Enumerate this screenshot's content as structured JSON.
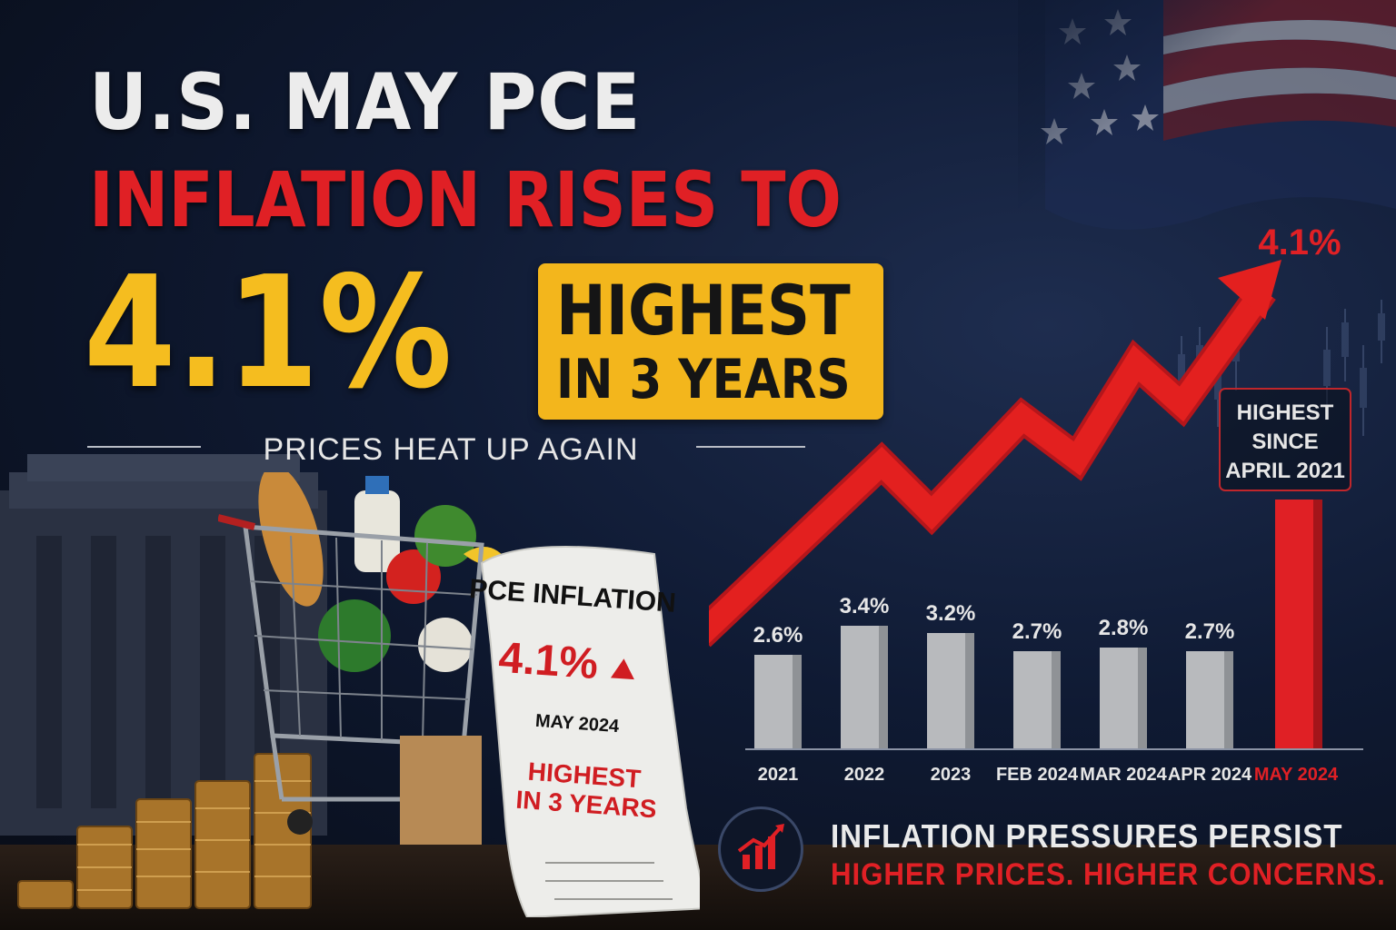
{
  "headline": {
    "line1": "U.S. MAY PCE",
    "line2": "INFLATION RISES TO",
    "value": "4.1%",
    "badge_line1": "HIGHEST",
    "badge_line2": "IN 3 YEARS",
    "subtitle": "PRICES HEAT UP AGAIN"
  },
  "receipt": {
    "title": "PCE INFLATION",
    "value": "4.1%",
    "date": "MAY 2024",
    "note_line1": "HIGHEST",
    "note_line2": "IN 3 YEARS"
  },
  "callout": {
    "line1": "INFLATION PRESSURES PERSIST",
    "line2": "HIGHER PRICES. HIGHER CONCERNS."
  },
  "colors": {
    "accent_red": "#e02025",
    "accent_yellow": "#f3b61c",
    "bar_gray": "#b8babd",
    "background": "#0f1a33"
  },
  "icons": [
    "rising-chart-icon",
    "up-triangle-icon",
    "trend-arrow-icon"
  ],
  "chart_data": {
    "type": "bar",
    "categories": [
      "2021",
      "2022",
      "2023",
      "FEB 2024",
      "MAR 2024",
      "APR 2024",
      "MAY 2024"
    ],
    "values": [
      2.6,
      3.4,
      3.2,
      2.7,
      2.8,
      2.7,
      4.1
    ],
    "value_labels": [
      "2.6%",
      "3.4%",
      "3.2%",
      "2.7%",
      "2.8%",
      "2.7%",
      "4.1%"
    ],
    "highlight_index": 6,
    "highlight_color": "#e02025",
    "annotation": [
      "HIGHEST",
      "SINCE",
      "APRIL 2021"
    ],
    "trend_arrow": true,
    "ylim": [
      0,
      4.6
    ],
    "grid": false,
    "title": "",
    "xlabel": "",
    "ylabel": ""
  }
}
